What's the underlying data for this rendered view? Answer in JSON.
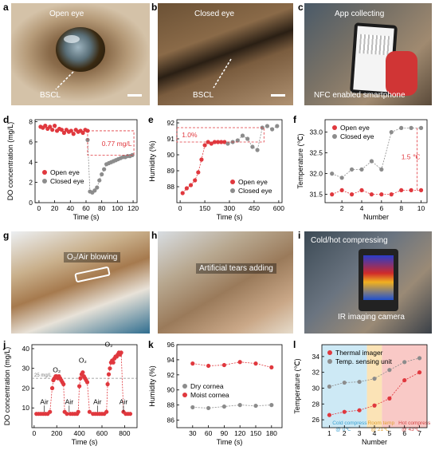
{
  "panels": {
    "a": {
      "label": "a",
      "caption": "Open eye",
      "pointer": "BSCL"
    },
    "b": {
      "label": "b",
      "caption": "Closed eye",
      "pointer": "BSCL"
    },
    "c": {
      "label": "c",
      "caption": "App collecting",
      "footer": "NFC enabled smartphone"
    },
    "g": {
      "label": "g",
      "caption": "O₂/Air blowing"
    },
    "h": {
      "label": "h",
      "caption": "Artificial tears adding"
    },
    "i": {
      "label": "i",
      "caption": "Cold/hot compressing",
      "footer": "IR imaging camera"
    }
  },
  "colors": {
    "red": "#e0383e",
    "gray": "#8c8c8c",
    "blue_region": "#cde9f5",
    "red_region": "#f9c9c6",
    "yellow_region": "#fbe3b6"
  },
  "chart_data": [
    {
      "id": "d",
      "type": "scatter",
      "label": "d",
      "xlabel": "Time (s)",
      "ylabel": "DO concentration (mg/L)",
      "xlim": [
        -5,
        125
      ],
      "ylim": [
        0,
        8.2
      ],
      "xticks": [
        0,
        20,
        40,
        60,
        80,
        100,
        120
      ],
      "yticks": [
        0,
        2,
        4,
        6,
        8
      ],
      "annotation": "0.77 mg/L",
      "series": [
        {
          "name": "Open eye",
          "color": "red",
          "x": [
            2,
            5,
            8,
            11,
            14,
            17,
            20,
            23,
            26,
            29,
            32,
            35,
            38,
            41,
            44,
            47,
            50,
            53,
            56,
            59,
            62
          ],
          "y": [
            7.5,
            7.4,
            7.6,
            7.3,
            7.5,
            7.2,
            7.6,
            7.1,
            7.3,
            7.2,
            6.9,
            7.2,
            7.0,
            7.1,
            6.8,
            7.2,
            7.0,
            7.1,
            6.9,
            7.2,
            7.1
          ]
        },
        {
          "name": "Closed eye",
          "color": "gray",
          "x": [
            62,
            65,
            68,
            71,
            74,
            77,
            80,
            83,
            86,
            89,
            92,
            95,
            98,
            101,
            104,
            107,
            110,
            113,
            116,
            119
          ],
          "y": [
            6.2,
            1.1,
            1.0,
            1.2,
            1.5,
            2.2,
            2.8,
            3.3,
            3.8,
            3.9,
            4.0,
            4.1,
            4.2,
            4.3,
            4.4,
            4.5,
            4.5,
            4.6,
            4.6,
            4.7
          ]
        }
      ]
    },
    {
      "id": "e",
      "type": "scatter",
      "label": "e",
      "xlabel": "Time (s)",
      "ylabel": "Humidity (%)",
      "xlim": [
        -20,
        620
      ],
      "ylim": [
        87,
        92.2
      ],
      "xticks": [
        0,
        150,
        300,
        450,
        600
      ],
      "yticks": [
        88,
        89,
        90,
        91,
        92
      ],
      "annotation": "1.0%",
      "series": [
        {
          "name": "Open eye",
          "color": "red",
          "x": [
            15,
            40,
            65,
            90,
            110,
            130,
            150,
            170,
            190,
            210,
            230,
            250,
            270
          ],
          "y": [
            87.6,
            87.9,
            88.1,
            88.4,
            88.9,
            89.7,
            90.6,
            90.8,
            90.7,
            90.8,
            90.8,
            90.8,
            90.8
          ]
        },
        {
          "name": "Closed eye",
          "color": "gray",
          "x": [
            290,
            320,
            350,
            380,
            410,
            440,
            470,
            500,
            530,
            560,
            590
          ],
          "y": [
            90.7,
            90.8,
            90.9,
            91.2,
            91.0,
            90.5,
            90.3,
            91.7,
            91.8,
            91.6,
            91.8
          ]
        }
      ]
    },
    {
      "id": "f",
      "type": "scatter",
      "label": "f",
      "xlabel": "Number",
      "ylabel": "Temperature (℃)",
      "xlim": [
        0.3,
        10.6
      ],
      "ylim": [
        31.3,
        33.3
      ],
      "xticks": [
        0,
        2,
        4,
        6,
        8,
        10
      ],
      "yticks": [
        31.5,
        32.0,
        32.5,
        33.0
      ],
      "annotation": "1.5 ℃",
      "series": [
        {
          "name": "Open eye",
          "color": "red",
          "x": [
            1,
            2,
            3,
            4,
            5,
            6,
            7,
            8,
            9,
            10
          ],
          "y": [
            31.5,
            31.6,
            31.5,
            31.6,
            31.5,
            31.5,
            31.5,
            31.6,
            31.6,
            31.6
          ]
        },
        {
          "name": "Closed eye",
          "color": "gray",
          "x": [
            1,
            2,
            3,
            4,
            5,
            6,
            7,
            8,
            9,
            10
          ],
          "y": [
            32.0,
            31.9,
            32.1,
            32.1,
            32.3,
            32.1,
            33.0,
            33.1,
            33.1,
            33.1
          ]
        }
      ]
    },
    {
      "id": "j",
      "type": "scatter",
      "label": "j",
      "xlabel": "Time (s)",
      "ylabel": "DO concentration (mg/L)",
      "xlim": [
        -20,
        910
      ],
      "ylim": [
        0,
        42
      ],
      "xticks": [
        0,
        200,
        400,
        600,
        800
      ],
      "yticks": [
        10,
        20,
        30,
        40
      ],
      "reference_label": "25 mg/L",
      "reference_value": 25,
      "annotations": [
        "Air",
        "O₂",
        "Air",
        "O₂",
        "Air",
        "O₂",
        "Air"
      ],
      "series": [
        {
          "name": "DO",
          "color": "red",
          "x": [
            20,
            40,
            60,
            80,
            100,
            120,
            140,
            160,
            170,
            180,
            190,
            200,
            210,
            220,
            230,
            240,
            250,
            260,
            270,
            290,
            320,
            340,
            360,
            380,
            390,
            400,
            410,
            420,
            430,
            440,
            450,
            460,
            470,
            490,
            520,
            540,
            560,
            580,
            600,
            620,
            640,
            650,
            660,
            670,
            680,
            690,
            700,
            710,
            720,
            730,
            740,
            750,
            760,
            770,
            790,
            810,
            830,
            850
          ],
          "y": [
            7,
            7,
            7,
            7,
            7,
            7,
            8,
            20,
            24,
            25,
            26,
            26,
            25,
            26,
            25,
            24,
            23,
            22,
            8,
            7,
            7,
            7,
            7,
            7,
            8,
            21,
            25,
            27,
            28,
            26,
            25,
            24,
            23,
            8,
            7,
            7,
            7,
            7,
            7,
            7,
            8,
            22,
            27,
            30,
            33,
            34,
            33,
            35,
            36,
            36,
            37,
            38,
            37,
            38,
            8,
            7,
            7,
            7
          ]
        }
      ]
    },
    {
      "id": "k",
      "type": "scatter",
      "label": "k",
      "xlabel": "Time (s)",
      "ylabel": "Humidity (%)",
      "xlim": [
        0,
        200
      ],
      "ylim": [
        85,
        96
      ],
      "xticks": [
        30,
        60,
        90,
        120,
        150,
        180
      ],
      "yticks": [
        86,
        88,
        90,
        92,
        94,
        96
      ],
      "series": [
        {
          "name": "Dry cornea",
          "color": "gray",
          "x": [
            30,
            60,
            90,
            120,
            150,
            180
          ],
          "y": [
            87.7,
            87.6,
            87.8,
            88.0,
            87.9,
            88.0
          ]
        },
        {
          "name": "Moist cornea",
          "color": "red",
          "x": [
            30,
            60,
            90,
            120,
            150,
            180
          ],
          "y": [
            93.5,
            93.2,
            93.3,
            93.7,
            93.5,
            93.0
          ]
        }
      ]
    },
    {
      "id": "l",
      "type": "scatter",
      "label": "l",
      "xlabel": "Number",
      "ylabel": "Temperature (℃)",
      "xlim": [
        0.5,
        7.5
      ],
      "ylim": [
        25,
        35.5
      ],
      "xticks": [
        1,
        2,
        3,
        4,
        5,
        6,
        7
      ],
      "yticks": [
        26,
        28,
        30,
        32,
        34
      ],
      "regions": [
        "Cold compress @ 0℃",
        "Room temp @ 21℃",
        "Hot compress @ 43℃"
      ],
      "series": [
        {
          "name": "Thermal imager",
          "color": "red",
          "x": [
            1,
            2,
            3,
            4,
            5,
            6,
            7
          ],
          "y": [
            26.6,
            27.0,
            27.2,
            27.8,
            28.7,
            31.0,
            32.0
          ]
        },
        {
          "name": "Temp. sensing unit",
          "color": "gray",
          "x": [
            1,
            2,
            3,
            4,
            5,
            6,
            7
          ],
          "y": [
            30.2,
            30.7,
            30.8,
            31.2,
            32.3,
            33.3,
            33.8
          ]
        }
      ]
    }
  ]
}
